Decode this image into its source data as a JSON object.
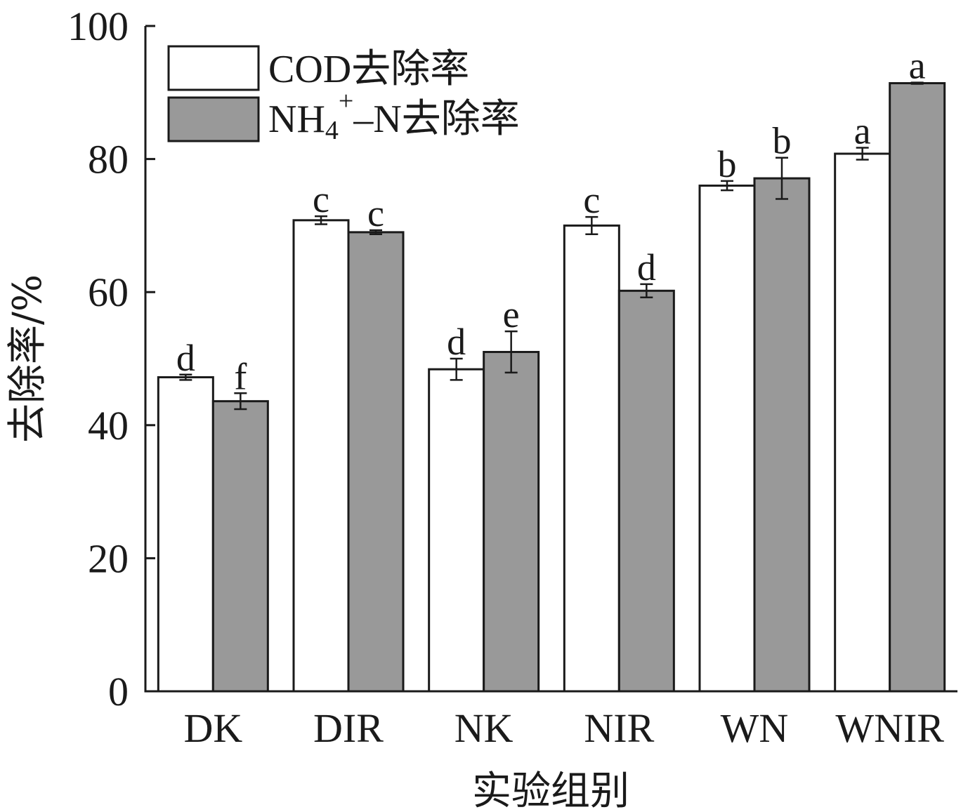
{
  "chart_data": {
    "type": "bar",
    "categories": [
      "DK",
      "DIR",
      "NK",
      "NIR",
      "WN",
      "WNIR"
    ],
    "series": [
      {
        "name": "COD去除率",
        "color": "#ffffff",
        "values": [
          47.2,
          70.8,
          48.4,
          70.0,
          76.0,
          80.8
        ],
        "errors": [
          0.4,
          0.6,
          1.6,
          1.3,
          0.7,
          0.9
        ],
        "letters": [
          "d",
          "c",
          "d",
          "c",
          "b",
          "a"
        ]
      },
      {
        "name_main": "NH",
        "name_sub": "4",
        "name_sup": "+",
        "name_rest": "–N去除率",
        "color": "#999999",
        "values": [
          43.6,
          69.0,
          51.0,
          60.2,
          77.1,
          91.4
        ],
        "errors": [
          1.2,
          0.3,
          3.1,
          1.0,
          3.1,
          0.1
        ],
        "letters": [
          "f",
          "c",
          "e",
          "d",
          "b",
          "a"
        ]
      }
    ],
    "yticks": [
      "0",
      "20",
      "40",
      "60",
      "80",
      "100"
    ],
    "ylim": [
      0,
      100
    ],
    "ylabel": "去除率/%",
    "xlabel": "实验组别",
    "legend_position": "top-left",
    "grid": false
  }
}
